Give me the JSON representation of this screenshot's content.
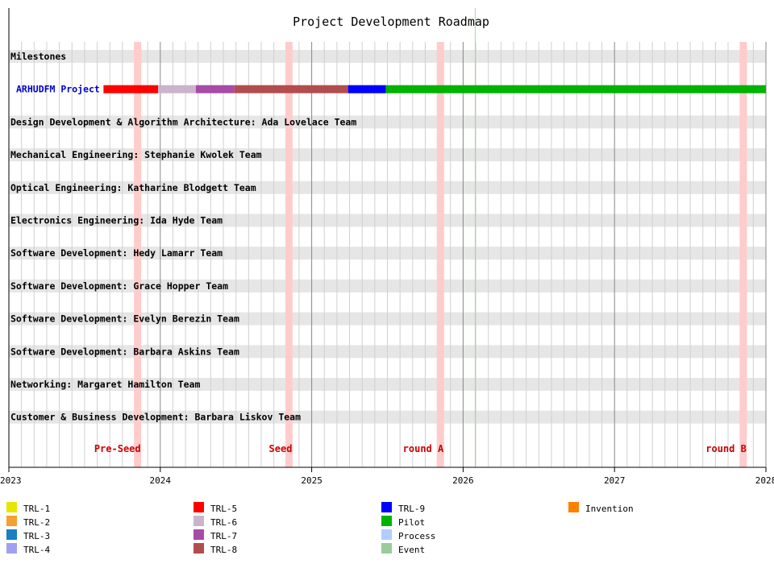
{
  "chart_data": {
    "type": "gantt",
    "title": "Project Development Roadmap",
    "x_axis": {
      "min": 2023.0,
      "max": 2028.0,
      "ticks": [
        "2023",
        "2024",
        "2025",
        "2026",
        "2027",
        "2028"
      ],
      "minor_ticks_per_year": 12
    },
    "today_marker": 2026.08,
    "rows": [
      {
        "label": "Milestones",
        "kind": "band"
      },
      {
        "label": "ARHUDFM Project",
        "kind": "project",
        "color": "#0000cc"
      },
      {
        "label": "Design Development & Algorithm Architecture: Ada Lovelace Team",
        "kind": "band"
      },
      {
        "label": "Mechanical Engineering: Stephanie Kwolek Team",
        "kind": "band"
      },
      {
        "label": "Optical Engineering: Katharine Blodgett Team",
        "kind": "band"
      },
      {
        "label": "Electronics Engineering: Ida Hyde Team",
        "kind": "band"
      },
      {
        "label": "Software Development: Hedy Lamarr Team",
        "kind": "band"
      },
      {
        "label": "Software Development: Grace Hopper Team",
        "kind": "band"
      },
      {
        "label": "Software Development: Evelyn Berezin Team",
        "kind": "band"
      },
      {
        "label": "Software Development: Barbara Askins Team",
        "kind": "band"
      },
      {
        "label": "Networking: Margaret Hamilton Team",
        "kind": "band"
      },
      {
        "label": "Customer & Business Development: Barbara Liskov Team",
        "kind": "band"
      }
    ],
    "project_segments": [
      {
        "phase": "TRL-5",
        "start": 2023.625,
        "end": 2023.985
      },
      {
        "phase": "TRL-6",
        "start": 2023.985,
        "end": 2024.235
      },
      {
        "phase": "TRL-7",
        "start": 2024.235,
        "end": 2024.49
      },
      {
        "phase": "TRL-8",
        "start": 2024.49,
        "end": 2025.24
      },
      {
        "phase": "TRL-9",
        "start": 2025.24,
        "end": 2025.49
      },
      {
        "phase": "Pilot",
        "start": 2025.49,
        "end": 2028.0
      }
    ],
    "milestones": [
      {
        "label": "Pre-Seed",
        "date": 2023.85
      },
      {
        "label": "Seed",
        "date": 2024.85
      },
      {
        "label": "round A",
        "date": 2025.85
      },
      {
        "label": "round B",
        "date": 2027.85
      }
    ],
    "legend": [
      {
        "label": "TRL-1",
        "color": "#e6e600"
      },
      {
        "label": "TRL-2",
        "color": "#f5a030"
      },
      {
        "label": "TRL-3",
        "color": "#1a7fc4"
      },
      {
        "label": "TRL-4",
        "color": "#a0a0f0"
      },
      {
        "label": "TRL-5",
        "color": "#ff0000"
      },
      {
        "label": "TRL-6",
        "color": "#ccb3cc"
      },
      {
        "label": "TRL-7",
        "color": "#a64ca6"
      },
      {
        "label": "TRL-8",
        "color": "#b34d4d"
      },
      {
        "label": "TRL-9",
        "color": "#0000ff"
      },
      {
        "label": "Pilot",
        "color": "#00b300"
      },
      {
        "label": "Process",
        "color": "#b3ccff"
      },
      {
        "label": "Event",
        "color": "#99cc99"
      },
      {
        "label": "Invention",
        "color": "#ff7f00"
      }
    ],
    "colors": {
      "band": "#e6e6e6",
      "milestone_band": "#ffcccc",
      "milestone_text": "#cc0000",
      "today_line": "#99dd99",
      "major_grid": "#888888",
      "minor_grid": "#d0d0d0"
    }
  }
}
